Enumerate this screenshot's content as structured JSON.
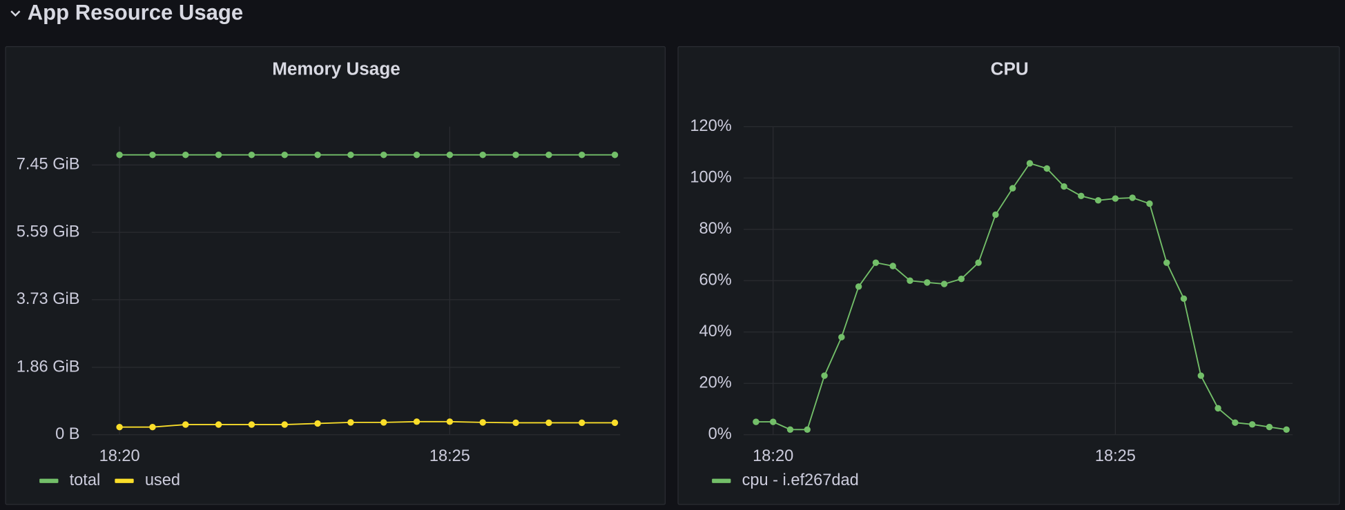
{
  "header": {
    "title": "App Resource Usage"
  },
  "chart_data": [
    {
      "type": "line",
      "title": "Memory Usage",
      "x": [
        1100,
        1100.5,
        1101,
        1101.5,
        1102,
        1102.5,
        1103,
        1103.5,
        1104,
        1104.5,
        1105,
        1105.5,
        1106,
        1106.5,
        1107,
        1107.5
      ],
      "series": [
        {
          "name": "total",
          "color": "#73bf69",
          "values": [
            7.73,
            7.73,
            7.73,
            7.73,
            7.73,
            7.73,
            7.73,
            7.73,
            7.73,
            7.73,
            7.73,
            7.73,
            7.73,
            7.73,
            7.73,
            7.73
          ]
        },
        {
          "name": "used",
          "color": "#fade2a",
          "values": [
            0.21,
            0.21,
            0.28,
            0.28,
            0.28,
            0.28,
            0.31,
            0.34,
            0.34,
            0.36,
            0.36,
            0.34,
            0.33,
            0.33,
            0.33,
            0.33
          ]
        }
      ],
      "xlim": [
        1099.58,
        1107.58
      ],
      "xticks": [
        {
          "value": 1100,
          "label": "18:20"
        },
        {
          "value": 1105,
          "label": "18:25"
        }
      ],
      "ylim": [
        0,
        8.51
      ],
      "yticks": [
        {
          "value": 0,
          "label": "0 B"
        },
        {
          "value": 1.86,
          "label": "1.86 GiB"
        },
        {
          "value": 3.73,
          "label": "3.73 GiB"
        },
        {
          "value": 5.59,
          "label": "5.59 GiB"
        },
        {
          "value": 7.45,
          "label": "7.45 GiB"
        }
      ],
      "grid": true,
      "legend": "bottom-left"
    },
    {
      "type": "line",
      "title": "CPU",
      "x": [
        1099.75,
        1100,
        1100.25,
        1100.5,
        1100.75,
        1101,
        1101.25,
        1101.5,
        1101.75,
        1102,
        1102.25,
        1102.5,
        1102.75,
        1103,
        1103.25,
        1103.5,
        1103.75,
        1104,
        1104.25,
        1104.5,
        1104.75,
        1105,
        1105.25,
        1105.5,
        1105.75,
        1106,
        1106.25,
        1106.5,
        1106.75,
        1107,
        1107.25,
        1107.5
      ],
      "series": [
        {
          "name": "cpu - i.ef267dad",
          "color": "#73bf69",
          "values": [
            5,
            5,
            2,
            2,
            23,
            38,
            57.7,
            67,
            65.7,
            60,
            59.3,
            58.7,
            60.7,
            67,
            85.7,
            96,
            105.7,
            103.7,
            96.7,
            93,
            91.3,
            92,
            92.3,
            90,
            67,
            53,
            23,
            10.3,
            4.7,
            4,
            3,
            2
          ]
        }
      ],
      "xlim": [
        1099.57,
        1107.59
      ],
      "xticks": [
        {
          "value": 1100,
          "label": "18:20"
        },
        {
          "value": 1105,
          "label": "18:25"
        }
      ],
      "ylim": [
        0,
        120
      ],
      "yticks": [
        {
          "value": 0,
          "label": "0%"
        },
        {
          "value": 20,
          "label": "20%"
        },
        {
          "value": 40,
          "label": "40%"
        },
        {
          "value": 60,
          "label": "60%"
        },
        {
          "value": 80,
          "label": "80%"
        },
        {
          "value": 100,
          "label": "100%"
        },
        {
          "value": 120,
          "label": "120%"
        }
      ],
      "grid": true,
      "legend": "bottom-left"
    }
  ]
}
